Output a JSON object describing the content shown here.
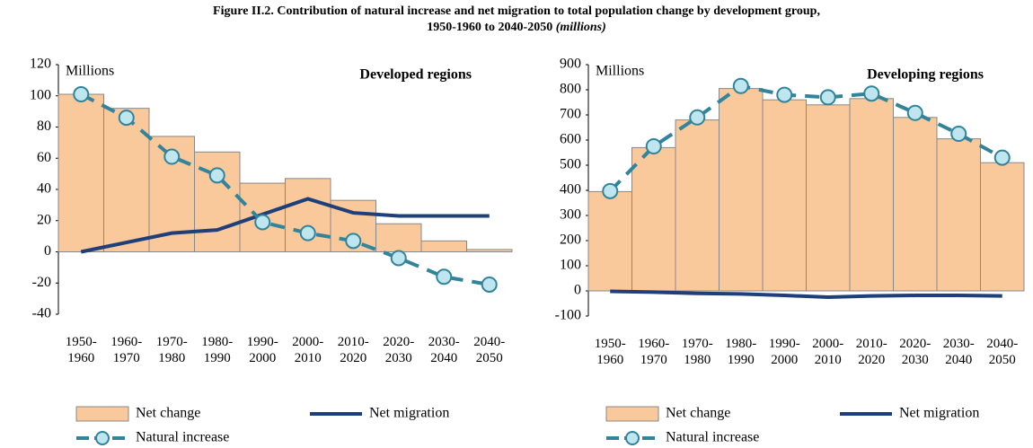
{
  "title": "Figure II.2. Contribution of natural increase and net migration to total population change by development group,",
  "title_line2": "1950-1960 to 2040-2050",
  "title_note": "(millions)",
  "chart_data": [
    {
      "type": "bar_line",
      "title": "Developed regions",
      "axis_label": "Millions",
      "categories": [
        "1950-1960",
        "1960-1970",
        "1970-1980",
        "1980-1990",
        "1990-2000",
        "2000-2010",
        "2010-2020",
        "2020-2030",
        "2030-2040",
        "2040-2050"
      ],
      "series": [
        {
          "name": "Net change",
          "kind": "bar",
          "color": "#f9c89b",
          "values": [
            101,
            92,
            74,
            64,
            44,
            47,
            33,
            18,
            7,
            1.5
          ]
        },
        {
          "name": "Net migration",
          "kind": "line",
          "color": "#1f3f7a",
          "values": [
            0,
            6,
            12,
            14,
            24,
            34,
            25,
            23,
            23,
            23
          ]
        },
        {
          "name": "Natural increase",
          "kind": "dashed-marker",
          "color": "#31849b",
          "values": [
            101,
            86,
            61,
            49,
            19,
            12,
            7,
            -4,
            -16,
            -21
          ]
        }
      ],
      "ylim": [
        -40,
        120
      ],
      "yticks": [
        -40,
        -20,
        0,
        20,
        40,
        60,
        80,
        100,
        120
      ]
    },
    {
      "type": "bar_line",
      "title": "Developing regions",
      "axis_label": "Millions",
      "categories": [
        "1950-1960",
        "1960-1970",
        "1970-1980",
        "1980-1990",
        "1990-2000",
        "2000-2010",
        "2010-2020",
        "2020-2030",
        "2030-2040",
        "2040-2050"
      ],
      "series": [
        {
          "name": "Net change",
          "kind": "bar",
          "color": "#f9c89b",
          "values": [
            395,
            570,
            680,
            805,
            760,
            740,
            765,
            690,
            605,
            510
          ]
        },
        {
          "name": "Net migration",
          "kind": "line",
          "color": "#1f3f7a",
          "values": [
            -2,
            -5,
            -10,
            -12,
            -18,
            -25,
            -20,
            -18,
            -18,
            -20
          ]
        },
        {
          "name": "Natural increase",
          "kind": "dashed-marker",
          "color": "#31849b",
          "values": [
            397,
            575,
            690,
            815,
            780,
            770,
            785,
            708,
            625,
            530
          ]
        }
      ],
      "ylim": [
        -100,
        900
      ],
      "yticks": [
        -100,
        0,
        100,
        200,
        300,
        400,
        500,
        600,
        700,
        800,
        900
      ]
    }
  ]
}
